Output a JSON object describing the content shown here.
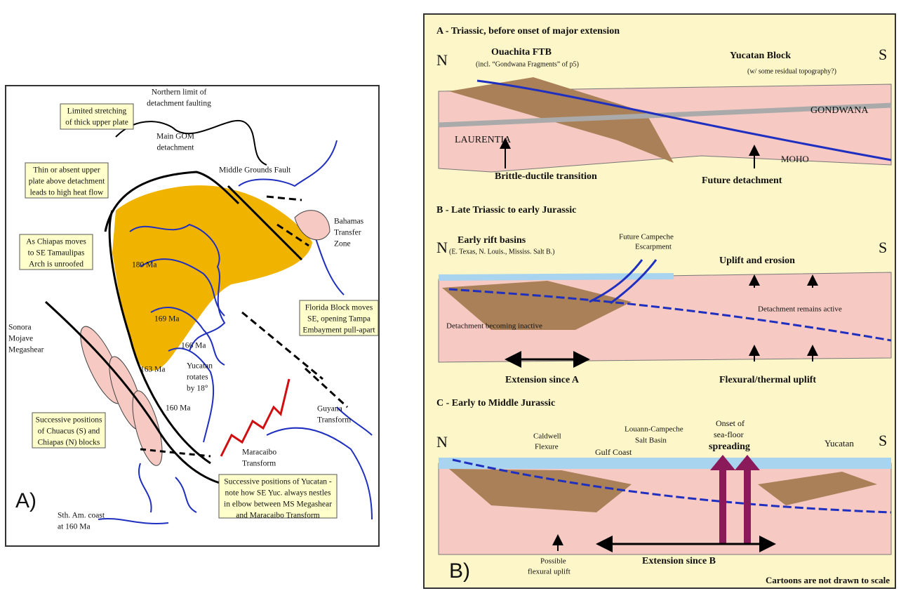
{
  "panel_a": {
    "label": "A)",
    "labels": [
      [
        "Northern limit of",
        "detachment faulting"
      ],
      [
        "Limited stretching",
        "of thick upper plate"
      ],
      [
        "Main GOM",
        "detachment"
      ],
      [
        "Middle Grounds Fault"
      ],
      [
        "Thin or absent upper",
        "plate above detachment",
        "leads to high heat flow"
      ],
      [
        "Bahamas",
        "Transfer",
        "Zone"
      ],
      [
        "As Chiapas moves",
        "to SE Tamaulipas",
        "Arch is unroofed"
      ],
      [
        "180 Ma"
      ],
      [
        "169 Ma"
      ],
      [
        "166 Ma"
      ],
      [
        "163 Ma"
      ],
      [
        "Sonora",
        "Mojave",
        "Megashear"
      ],
      [
        "Florida Block moves",
        "SE, opening Tampa",
        "Embayment pull-apart"
      ],
      [
        "Yucatan",
        "rotates",
        "by 18°"
      ],
      [
        "160 Ma"
      ],
      [
        "Guyana",
        "Transform"
      ],
      [
        "Successive positions",
        "of Chuacus (S) and",
        "Chiapas (N) blocks"
      ],
      [
        "Maracaibo",
        "Transform"
      ],
      [
        "Successive positions of Yucatan -",
        "note how SE Yuc. always nestles",
        "in elbow between MS Megashear",
        "and Maracaibo Transform"
      ],
      [
        "Sth. Am. coast",
        "at 160 Ma"
      ]
    ]
  },
  "panel_b": {
    "label": "B)",
    "note": "Cartoons are not drawn to scale",
    "sections": [
      {
        "title": "A - Triassic, before onset of major extension",
        "labels": [
          "N",
          "S",
          "Ouachita FTB",
          "(incl. “Gondwana Fragments” of p5)",
          "Yucatan Block",
          "(w/ some residual topography?)",
          "GONDWANA",
          "LAURENTIA",
          "MOHO",
          "Brittle-ductile transition",
          "Future detachment"
        ]
      },
      {
        "title": "B - Late Triassic to early Jurassic",
        "labels": [
          "N",
          "S",
          "Early rift basins",
          "(E. Texas, N. Louis., Mississ. Salt B.)",
          "Future Campeche",
          "Escarpment",
          "Uplift and erosion",
          "Detachment remains active",
          "Detachment becoming inactive",
          "Extension since A",
          "Flexural/thermal uplift"
        ]
      },
      {
        "title": "C - Early to Middle Jurassic",
        "labels": [
          "N",
          "S",
          "Caldwell",
          "Flexure",
          "Gulf Coast",
          "Louann-Campeche",
          "Salt Basin",
          "Onset of",
          "sea-floor",
          "spreading",
          "Yucatan",
          "Possible",
          "flexural uplift",
          "Extension since B"
        ]
      }
    ]
  }
}
